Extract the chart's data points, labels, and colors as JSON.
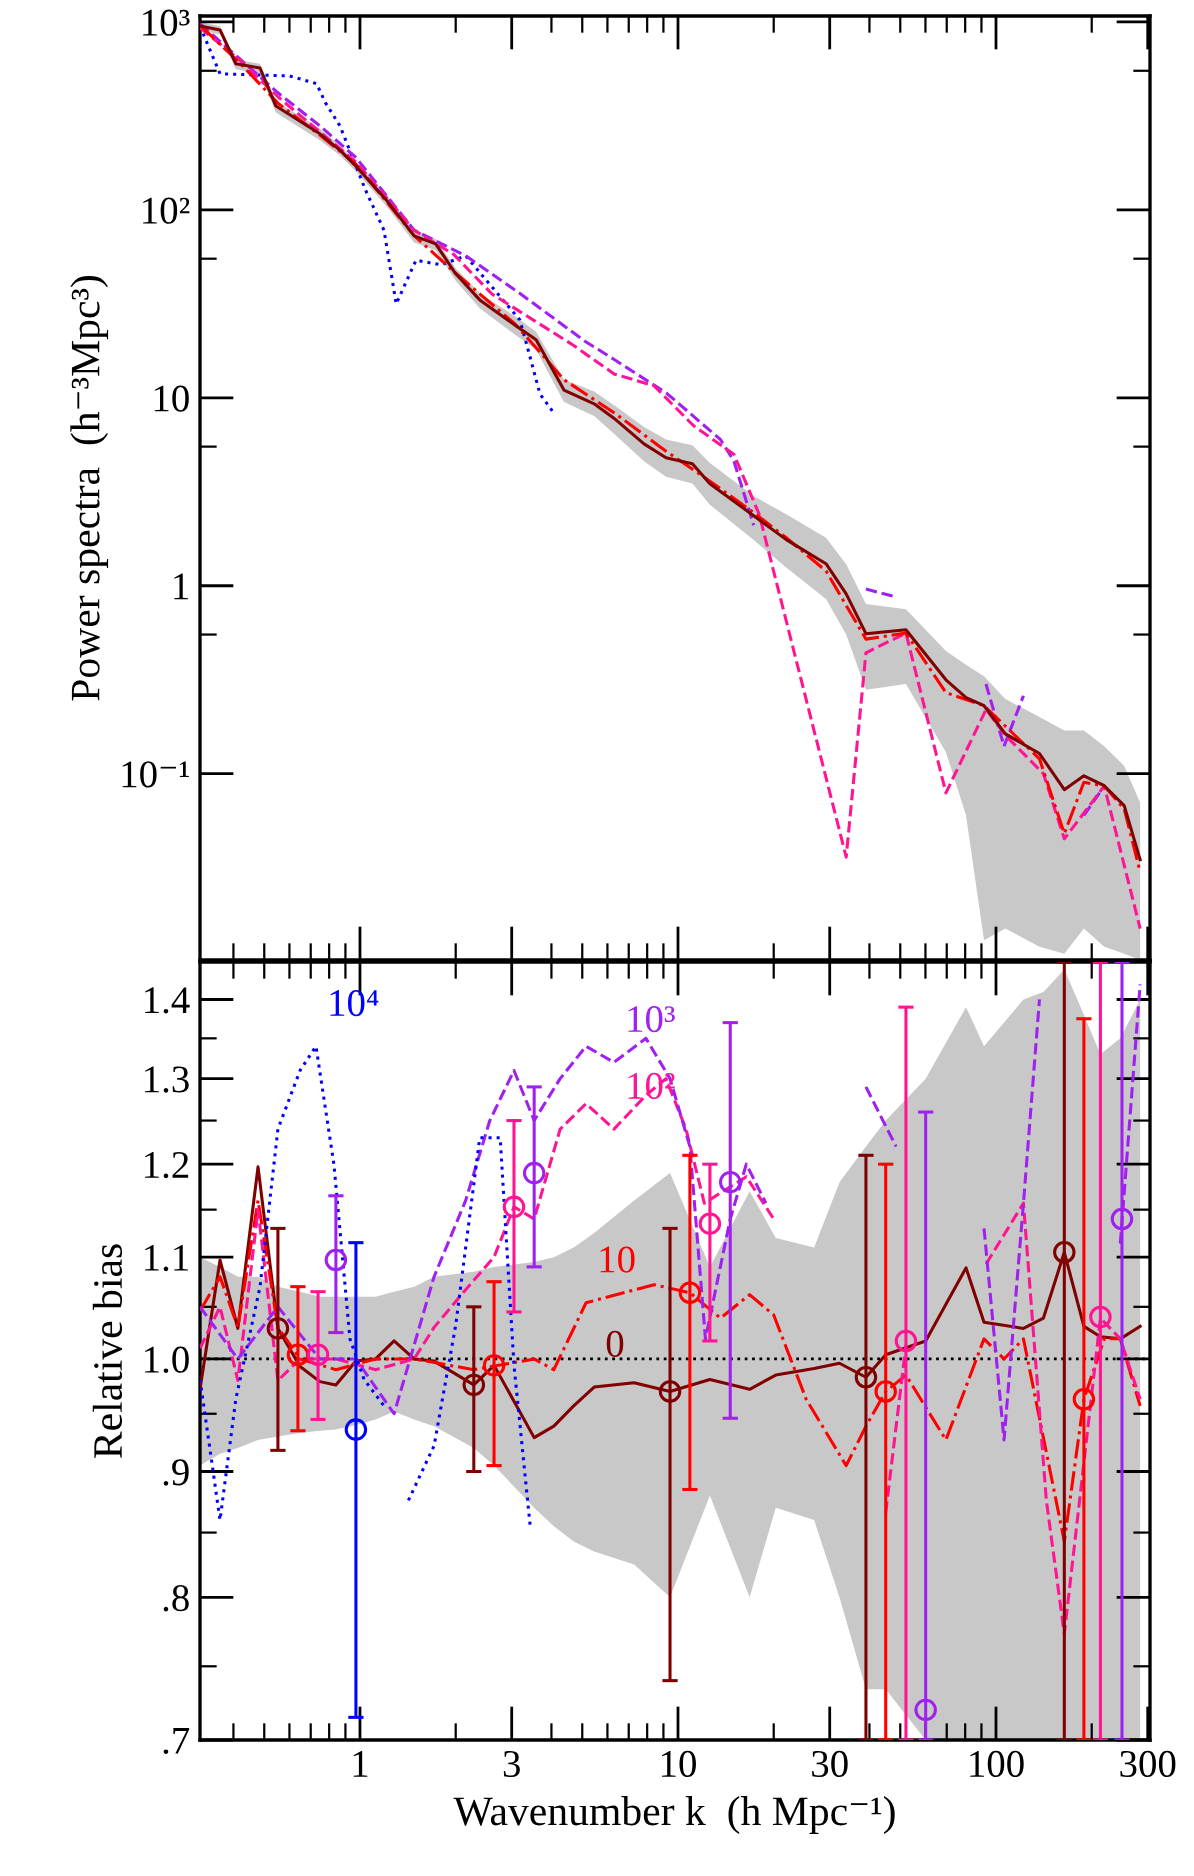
{
  "chart_data": [
    {
      "type": "line",
      "ylabel": "Power spectra  (h⁻³Mpc³)",
      "log": "xy",
      "grid": false,
      "tick_labels": "y",
      "xlim": [
        0.314,
        305
      ],
      "ylim": [
        0.0102,
        1076
      ],
      "xticks": [
        1,
        3,
        10,
        30,
        100,
        300
      ],
      "yticks": [
        {
          "value": 1000,
          "label": "10³"
        },
        {
          "value": 100,
          "label": "10²"
        },
        10,
        1,
        {
          "value": 0.1,
          "label": "10⁻¹"
        }
      ],
      "series": [
        {
          "color": "#0000ff",
          "line_style": "dotted",
          "x": [
            0.314,
            0.363,
            0.6,
            0.73,
            0.78,
            0.865,
            1.04,
            1.19,
            1.3,
            1.5,
            1.8,
            2.15,
            3.18,
            3.35,
            3.68,
            4.07
          ],
          "values": [
            950,
            530,
            516,
            470,
            370,
            280,
            128,
            78,
            31.6,
            54,
            51,
            57,
            26,
            19,
            10.5,
            8.3
          ]
        },
        {
          "color": "#a020f0",
          "line_style": "dashed",
          "x": [
            0.314,
            0.413,
            0.552,
            0.748,
            0.971,
            1.48,
            2.15,
            3.18,
            5.1,
            6.3,
            9.2,
            13.6,
            15,
            17.3,
            19,
            39,
            47.5,
            60,
            93,
            106,
            122,
            141,
            189,
            219
          ],
          "values": [
            980,
            650,
            420,
            280,
            190,
            78,
            57,
            36,
            20,
            16,
            10.6,
            6,
            4.6,
            2.1,
            null,
            0.96,
            0.88,
            null,
            0.3,
            0.14,
            0.26,
            null,
            0.06,
            0.086
          ]
        },
        {
          "color": "#ff1493",
          "line_style": "dashed",
          "x": [
            0.314,
            0.413,
            0.552,
            0.748,
            0.971,
            1.48,
            1.97,
            2.6,
            3.5,
            4.7,
            6.3,
            8.4,
            11.2,
            15,
            18,
            33.8,
            39,
            52.1,
            69.6,
            93.1,
            107,
            141,
            164,
            219,
            284
          ],
          "values": [
            930,
            640,
            400,
            260,
            180,
            78,
            58,
            35.7,
            26,
            19,
            13.4,
            11.6,
            7.1,
            5.0,
            2.4,
            0.036,
            0.44,
            0.56,
            0.079,
            0.22,
            0.16,
            0.1,
            0.045,
            0.086,
            0.015
          ]
        },
        {
          "color": "#ff0000",
          "line_style": "dashdot",
          "x": [
            0.314,
            0.413,
            0.552,
            0.748,
            0.971,
            1.48,
            2.0,
            3.09,
            4.38,
            6.38,
            9.17,
            12.6,
            17.3,
            21.9,
            29.2,
            39.0,
            52.1,
            69.6,
            91.7,
            137,
            164,
            189,
            219,
            253,
            284
          ],
          "values": [
            960,
            620,
            370,
            250,
            175,
            73,
            46,
            24.5,
            12.5,
            8.2,
            5.2,
            3.6,
            2.45,
            1.8,
            1.2,
            0.52,
            0.56,
            0.27,
            0.23,
            0.12,
            0.048,
            0.09,
            0.086,
            0.065,
            0.03
          ]
        },
        {
          "color": "#800000",
          "line_style": "solid",
          "x": [
            0.314,
            0.363,
            0.407,
            0.485,
            0.544,
            0.748,
            0.865,
            0.971,
            1.21,
            1.48,
            1.73,
            2.0,
            2.38,
            3.09,
            3.58,
            4.38,
            5.45,
            6.38,
            7.82,
            9.17,
            11.1,
            12.6,
            17.3,
            21.9,
            29.2,
            33.8,
            39.0,
            52.1,
            69.6,
            80.5,
            91.7,
            107,
            137,
            164,
            189,
            219,
            253,
            284
          ],
          "values": [
            953,
            907,
            599,
            569,
            357,
            254,
            208,
            171,
            113,
            72.8,
            66,
            45.7,
            33.2,
            24.2,
            20.4,
            11.0,
            9.29,
            7.64,
            5.69,
            4.8,
            4.46,
            3.49,
            2.36,
            1.76,
            1.31,
            0.906,
            0.556,
            0.583,
            0.316,
            0.254,
            0.23,
            0.163,
            0.128,
            0.0822,
            0.0975,
            0.0863,
            0.0676,
            0.0349
          ],
          "lower": [
            900,
            860,
            560,
            530,
            330,
            235,
            195,
            160,
            105,
            67,
            61,
            42,
            30,
            21.5,
            18,
            9.5,
            8.0,
            6.3,
            4.6,
            3.8,
            3.5,
            2.7,
            1.75,
            1.25,
            0.85,
            0.55,
            0.28,
            0.3,
            0.13,
            0.06,
            0.013,
            0.015,
            0.012,
            0.011,
            0.015,
            0.012,
            0.011,
            0.0102
          ],
          "upper": [
            1000,
            950,
            630,
            600,
            380,
            270,
            220,
            180,
            120,
            78,
            70,
            49,
            36,
            27,
            22.5,
            12.5,
            10.8,
            9.0,
            7.0,
            6.0,
            5.6,
            4.5,
            3.0,
            2.4,
            1.8,
            1.3,
            0.8,
            0.75,
            0.45,
            0.38,
            0.33,
            0.25,
            0.2,
            0.17,
            0.17,
            0.14,
            0.11,
            0.07
          ]
        }
      ]
    },
    {
      "type": "line",
      "xlabel": "Wavenumber k  (h Mpc⁻¹)",
      "ylabel": "Relative bias",
      "log": "xy",
      "grid": false,
      "xlim": [
        0.314,
        305
      ],
      "ylim": [
        0.7,
        1.45
      ],
      "xticks": [
        1,
        3,
        10,
        30,
        100,
        300
      ],
      "yticks": [
        {
          "value": 0.7,
          "label": ".7"
        },
        {
          "value": 0.8,
          "label": ".8"
        },
        {
          "value": 0.9,
          "label": ".9"
        },
        {
          "value": 1.0,
          "label": "1.0"
        },
        1.1,
        1.2,
        1.3,
        1.4
      ],
      "ref_lines": [
        {
          "axis": "y",
          "value": 1.0,
          "color": "#000000",
          "line_style": "dotted"
        }
      ],
      "series": [
        {
          "color": "#800000",
          "line_style": "solid",
          "x": [
            0.314,
            0.363,
            0.413,
            0.478,
            0.552,
            0.648,
            0.748,
            0.84,
            0.971,
            1.12,
            1.28,
            1.48,
            1.71,
            2.28,
            2.64,
            3.53,
            4.07,
            4.7,
            5.45,
            7.28,
            9.44,
            12.6,
            16.8,
            20.3,
            26.8,
            32.2,
            39.0,
            45.0,
            60.1,
            80.5,
            91.7,
            122,
            141,
            164,
            189,
            213,
            246,
            284
          ],
          "values": [
            0.972,
            1.097,
            1.029,
            1.197,
            1.029,
            0.993,
            0.979,
            0.976,
            0.998,
            1.0,
            1.017,
            1.0,
            0.998,
            0.976,
            0.994,
            0.929,
            0.939,
            0.957,
            0.974,
            0.978,
            0.97,
            0.981,
            0.972,
            0.985,
            0.991,
            0.996,
            0.983,
            1.004,
            1.017,
            1.089,
            1.035,
            1.029,
            1.039,
            1.105,
            1.031,
            1.021,
            1.019,
            1.031
          ],
          "lower": [
            0.905,
            0.915,
            0.92,
            0.927,
            0.93,
            0.933,
            0.935,
            0.936,
            0.94,
            0.945,
            0.952,
            0.945,
            0.939,
            0.92,
            0.905,
            0.87,
            0.855,
            0.843,
            0.835,
            0.825,
            0.8,
            0.88,
            0.8,
            0.87,
            0.86,
            0.8,
            0.734,
            0.734,
            0.7,
            0.7,
            0.7,
            0.7,
            0.7,
            0.7,
            0.7,
            0.7,
            0.7,
            0.7
          ],
          "upper": [
            1.1,
            1.09,
            1.08,
            1.08,
            1.07,
            1.065,
            1.06,
            1.06,
            1.06,
            1.06,
            1.065,
            1.07,
            1.08,
            1.085,
            1.09,
            1.095,
            1.1,
            1.11,
            1.125,
            1.16,
            1.19,
            1.09,
            1.17,
            1.12,
            1.11,
            1.18,
            1.22,
            1.25,
            1.3,
            1.39,
            1.34,
            1.4,
            1.41,
            1.44,
            1.38,
            1.33,
            1.35,
            1.4
          ]
        },
        {
          "color": "#ff0000",
          "line_style": "dashdot",
          "x": [
            0.314,
            0.363,
            0.413,
            0.478,
            0.552,
            0.648,
            0.84,
            1.12,
            1.48,
            2.28,
            3.53,
            4.07,
            5.14,
            8.41,
            10.9,
            13.6,
            16.8,
            20.0,
            25.3,
            33.8,
            39.0,
            45.0,
            52.1,
            69.6,
            91.7,
            106,
            122,
            164,
            189,
            219,
            246,
            284
          ],
          "values": [
            1.046,
            1.08,
            1.03,
            1.16,
            1.03,
            1.0,
            0.99,
            1.0,
            1.0,
            0.99,
            1.0,
            0.99,
            1.054,
            1.072,
            1.064,
            1.039,
            1.062,
            1.042,
            0.963,
            0.905,
            0.939,
            0.97,
            0.985,
            0.927,
            1.019,
            1.0,
            1.019,
            0.843,
            0.963,
            1.019,
            1.019,
            0.957
          ]
        },
        {
          "color": "#ff1493",
          "line_style": "dashed",
          "x": [
            0.314,
            0.363,
            0.413,
            0.478,
            0.552,
            0.648,
            0.84,
            1.12,
            1.48,
            1.71,
            2.15,
            2.64,
            3.05,
            3.53,
            4.26,
            5.14,
            6.29,
            7.93,
            9.17,
            10.6,
            12.1,
            16.4,
            20.0,
            24.9,
            45.0,
            52.1,
            60.1,
            93.1,
            122,
            144,
            164,
            213,
            246,
            284
          ],
          "values": [
            1.01,
            1.05,
            0.98,
            1.15,
            0.98,
            1.0,
            1.0,
            0.99,
            1.0,
            1.03,
            1.067,
            1.1,
            1.153,
            1.14,
            1.24,
            1.27,
            1.24,
            1.28,
            1.3,
            1.24,
            1.157,
            1.186,
            1.14,
            null,
            0.866,
            1.013,
            null,
            1.093,
            1.157,
            0.876,
            0.773,
            1.039,
            1.019,
            0.963
          ]
        },
        {
          "color": "#a020f0",
          "line_style": "dashed",
          "x": [
            0.314,
            0.413,
            0.552,
            0.748,
            0.971,
            1.28,
            1.71,
            2.15,
            2.56,
            3.05,
            3.53,
            4.26,
            5.14,
            6.29,
            7.93,
            9.44,
            10.9,
            12.2,
            14.6,
            16.4,
            18.9,
            19.5,
            39.0,
            48.5,
            55.0,
            91.7,
            106,
            122,
            137,
            141,
            246,
            284
          ],
          "values": [
            1.05,
            1.0,
            1.05,
            1.0,
            1.0,
            0.95,
            1.08,
            1.16,
            1.25,
            1.31,
            1.25,
            1.3,
            1.34,
            1.32,
            1.35,
            1.3,
            1.22,
            1.019,
            1.14,
            1.2,
            1.157,
            null,
            1.29,
            1.22,
            null,
            1.13,
            0.927,
            1.157,
            1.4,
            null,
            1.114,
            1.42
          ]
        },
        {
          "color": "#0000ff",
          "line_style": "dotted",
          "x": [
            0.314,
            0.363,
            0.407,
            0.485,
            0.552,
            0.648,
            0.727,
            0.828,
            0.93,
            1.03,
            1.19,
            1.28,
            1.42,
            1.71,
            2.0,
            2.38,
            2.76,
            3.05,
            3.43
          ],
          "values": [
            0.981,
            0.86,
            0.963,
            1.07,
            1.24,
            1.31,
            1.34,
            1.2,
            1.019,
            0.981,
            0.957,
            null,
            0.876,
            0.922,
            1.032,
            1.23,
            1.23,
            0.994,
            0.855
          ]
        },
        {
          "type": "scatter",
          "marker": "circle",
          "color": "#800000",
          "x": [
            0.552,
            2.28,
            9.44,
            39.0,
            164
          ],
          "values": [
            1.029,
            0.976,
            0.97,
            0.983,
            1.105
          ],
          "errors": [
            [
              0.918,
              1.13
            ],
            [
              0.9,
              1.05
            ],
            [
              0.74,
              1.13
            ],
            [
              0.7,
              1.21
            ],
            [
              0.7,
              1.45
            ]
          ]
        },
        {
          "type": "scatter",
          "marker": "circle",
          "color": "#ff0000",
          "x": [
            0.638,
            2.64,
            10.9,
            45.0,
            189
          ],
          "values": [
            1.004,
            0.994,
            1.064,
            0.97,
            0.963
          ],
          "errors": [
            [
              0.935,
              1.07
            ],
            [
              0.905,
              1.075
            ],
            [
              0.885,
              1.21
            ],
            [
              0.7,
              1.2
            ],
            [
              0.7,
              1.375
            ]
          ]
        },
        {
          "type": "scatter",
          "marker": "circle",
          "color": "#ff1493",
          "x": [
            0.738,
            3.05,
            12.6,
            52.1,
            213
          ],
          "values": [
            1.004,
            1.153,
            1.135,
            1.017,
            1.04
          ],
          "errors": [
            [
              0.945,
              1.065
            ],
            [
              1.045,
              1.25
            ],
            [
              1.017,
              1.2
            ],
            [
              0.7,
              1.39
            ],
            [
              0.7,
              1.45
            ]
          ]
        },
        {
          "type": "scatter",
          "marker": "circle",
          "color": "#a020f0",
          "x": [
            0.84,
            3.53,
            14.6,
            60.1,
            249
          ],
          "values": [
            1.097,
            1.19,
            1.18,
            0.72,
            1.14
          ],
          "errors": [
            [
              1.025,
              1.165
            ],
            [
              1.09,
              1.29
            ],
            [
              0.946,
              1.37
            ],
            [
              0.7,
              1.26
            ],
            [
              0.7,
              1.45
            ]
          ]
        },
        {
          "type": "scatter",
          "marker": "circle",
          "color": "#0000ff",
          "x": [
            0.971
          ],
          "values": [
            0.936
          ],
          "errors": [
            [
              0.715,
              1.115
            ]
          ]
        }
      ],
      "annotations": [
        {
          "text": "0",
          "x": 5.45,
          "y": 0.974
        },
        {
          "text": "10",
          "x": 5.14,
          "y": 1.054
        },
        {
          "text": "10²",
          "x": 6.29,
          "y": 1.24
        },
        {
          "text": "10³",
          "x": 6.29,
          "y": 1.32
        },
        {
          "text": "10⁴",
          "x": 0.727,
          "y": 1.34
        }
      ]
    }
  ]
}
